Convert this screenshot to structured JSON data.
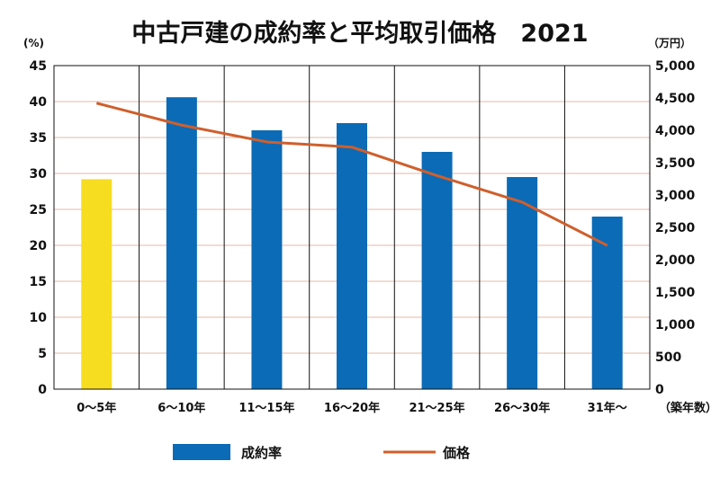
{
  "chart_data": {
    "type": "bar",
    "title": "中古戸建の成約率と平均取引価格　2021",
    "y_left_unit": "(%)",
    "y_right_unit": "（万円）",
    "x_unit": "（築年数）",
    "categories": [
      "0～5年",
      "6～10年",
      "11～15年",
      "16～20年",
      "21～25年",
      "26～30年",
      "31年～"
    ],
    "y_left": {
      "min": 0,
      "max": 45,
      "step": 5,
      "ticks": [
        "0",
        "5",
        "10",
        "15",
        "20",
        "25",
        "30",
        "35",
        "40",
        "45"
      ]
    },
    "y_right": {
      "min": 0,
      "max": 5000,
      "step": 500,
      "ticks": [
        "0",
        "500",
        "1,000",
        "1,500",
        "2,000",
        "2,500",
        "3,000",
        "3,500",
        "4,000",
        "4,500",
        "5,000"
      ]
    },
    "series": [
      {
        "name": "成約率",
        "type": "bar",
        "axis": "left",
        "values": [
          29.2,
          40.6,
          36.0,
          37.0,
          33.0,
          29.5,
          24.0
        ]
      },
      {
        "name": "価格",
        "type": "line",
        "axis": "right",
        "values": [
          4420,
          4080,
          3820,
          3740,
          3300,
          2890,
          2220
        ]
      }
    ],
    "colors": {
      "bar": "#0b6bb6",
      "bar_highlight": "#f6dd1f",
      "line": "#cf5f2c",
      "grid": "#e6b8aa"
    },
    "grid": true,
    "legend": "bottom"
  }
}
